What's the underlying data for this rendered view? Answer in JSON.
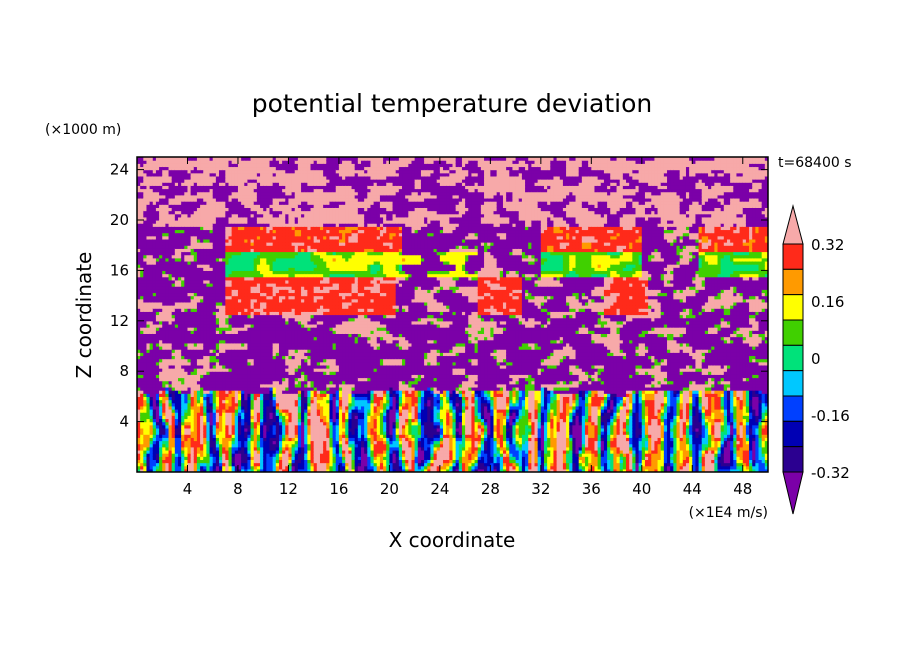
{
  "chart_data": {
    "type": "heatmap",
    "title": "potential temperature deviation",
    "xlabel": "X coordinate",
    "ylabel": "Z coordinate",
    "x_unit": "(×1E4 m/s)",
    "y_unit": "(×1000 m)",
    "time_label": "t=68400 s",
    "xlim": [
      0,
      50
    ],
    "ylim": [
      0,
      25
    ],
    "x_ticks": [
      4,
      8,
      12,
      16,
      20,
      24,
      28,
      32,
      36,
      40,
      44,
      48
    ],
    "y_ticks": [
      4,
      8,
      12,
      16,
      20,
      24
    ],
    "colorbar": {
      "levels": [
        -0.4,
        -0.32,
        -0.24,
        -0.16,
        -0.08,
        0,
        0.08,
        0.16,
        0.24,
        0.32,
        0.4
      ],
      "labels": [
        "0.32",
        "0.16",
        "0",
        "-0.16",
        "-0.32"
      ],
      "label_values": [
        0.32,
        0.16,
        0,
        -0.16,
        -0.32
      ],
      "colors": [
        "#7b00a8",
        "#2b0090",
        "#0000b4",
        "#0040ff",
        "#00c8ff",
        "#00e27a",
        "#40d000",
        "#ffff00",
        "#ff9a00",
        "#ff2a1a",
        "#f7a9a9"
      ],
      "extend": "both"
    },
    "bands": [
      {
        "z": [
          0,
          6
        ],
        "pattern": "turbulent vertical stripes of all levels"
      },
      {
        "z": [
          6,
          13
        ],
        "pattern": "mostly purple (< -0.32) with pink and green patches"
      },
      {
        "z": [
          12,
          15.5
        ],
        "pattern": "red (0.24-0.32) blocks near x=8-20, 27-30, 37-40"
      },
      {
        "z": [
          15.5,
          17.5
        ],
        "pattern": "green/yellow/cyan layer"
      },
      {
        "z": [
          17.5,
          19.5
        ],
        "pattern": "red/orange layer near x=7-20, 32-38, 45-50"
      },
      {
        "z": [
          19.5,
          25
        ],
        "pattern": "pink (> 0.4) and purple patches"
      }
    ]
  }
}
